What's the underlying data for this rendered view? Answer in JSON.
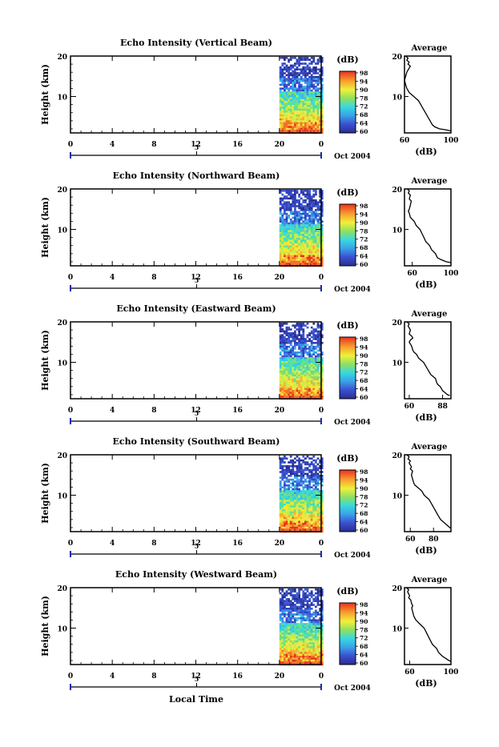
{
  "chart_data": [
    {
      "type": "heatmap",
      "title": "Echo Intensity (Vertical Beam)",
      "ylabel": "Height (km)",
      "yticks": [
        "20",
        "10"
      ],
      "ylim": [
        1,
        20
      ],
      "xticks": [
        "0",
        "4",
        "8",
        "12",
        "16",
        "20",
        "0"
      ],
      "xlim": [
        0,
        24
      ],
      "date_tick": "5",
      "date_label": "Oct 2004",
      "data_start_hour": 20.0,
      "colorbar": {
        "label": "(dB)",
        "ticks": [
          "98",
          "94",
          "90",
          "78",
          "72",
          "68",
          "64",
          "60"
        ]
      },
      "profile": {
        "title": "Average",
        "xlabel": "(dB)",
        "xticks": [
          "60",
          "100"
        ],
        "xlim": [
          60,
          100
        ],
        "yticks": [
          "20",
          "10"
        ],
        "x": [
          61,
          63,
          62,
          64,
          63,
          65,
          64,
          62,
          61,
          60,
          61,
          62,
          63,
          64,
          66,
          68,
          70,
          72,
          74,
          76,
          78,
          80,
          81,
          82,
          84,
          86,
          90,
          95,
          100
        ],
        "y": [
          20,
          19.5,
          19,
          18.5,
          18,
          17.5,
          17,
          16,
          15,
          14,
          13,
          12,
          11.5,
          11,
          10.5,
          10,
          9.5,
          9,
          8,
          7,
          6,
          5,
          4.5,
          4,
          3,
          2.5,
          2,
          1.8,
          1.5
        ]
      }
    },
    {
      "type": "heatmap",
      "title": "Echo Intensity (Northward Beam)",
      "ylabel": "Height (km)",
      "yticks": [
        "20",
        "10"
      ],
      "ylim": [
        1,
        20
      ],
      "xticks": [
        "0",
        "4",
        "8",
        "12",
        "16",
        "20",
        "0"
      ],
      "xlim": [
        0,
        24
      ],
      "date_tick": "5",
      "date_label": "Oct 2004",
      "data_start_hour": 20.0,
      "colorbar": {
        "label": "(dB)",
        "ticks": [
          "98",
          "94",
          "90",
          "78",
          "72",
          "68",
          "64",
          "60"
        ]
      },
      "profile": {
        "title": "Average",
        "xlabel": "(dB)",
        "xticks": [
          "60",
          "100"
        ],
        "xlim": [
          52,
          100
        ],
        "yticks": [
          "20",
          "10"
        ],
        "x": [
          55,
          57,
          56,
          58,
          57,
          59,
          58,
          57,
          56,
          57,
          58,
          60,
          62,
          63,
          64,
          66,
          68,
          70,
          72,
          74,
          76,
          78,
          80,
          82,
          84,
          86,
          90,
          95,
          100
        ],
        "y": [
          20,
          19.5,
          19,
          18.5,
          17.5,
          17,
          16,
          15,
          14.5,
          14,
          13,
          12.5,
          12,
          11.5,
          11,
          10.5,
          10,
          9,
          8,
          7,
          6.5,
          6,
          5,
          4.5,
          4,
          3,
          2.5,
          2,
          1.8
        ]
      }
    },
    {
      "type": "heatmap",
      "title": "Echo Intensity (Eastward Beam)",
      "ylabel": "Height (km)",
      "yticks": [
        "20",
        "10"
      ],
      "ylim": [
        1,
        20
      ],
      "xticks": [
        "0",
        "4",
        "8",
        "12",
        "16",
        "20",
        "0"
      ],
      "xlim": [
        0,
        24
      ],
      "date_tick": "5",
      "date_label": "Oct 2004",
      "data_start_hour": 20.0,
      "colorbar": {
        "label": "(dB)",
        "ticks": [
          "98",
          "94",
          "90",
          "78",
          "72",
          "68",
          "64",
          "60"
        ]
      },
      "profile": {
        "title": "Average",
        "xlabel": "(dB)",
        "xticks": [
          "60",
          "88"
        ],
        "xlim": [
          56,
          95
        ],
        "yticks": [
          "20",
          "10"
        ],
        "x": [
          58,
          60,
          59,
          61,
          60,
          62,
          63,
          61,
          60,
          61,
          62,
          63,
          64,
          66,
          68,
          70,
          72,
          74,
          76,
          78,
          80,
          82,
          83,
          84,
          86,
          88,
          90,
          92,
          94
        ],
        "y": [
          20,
          19.5,
          19,
          18,
          17,
          16.5,
          16,
          15.5,
          15,
          14.5,
          14,
          13,
          12.5,
          12,
          11,
          10.5,
          10,
          9,
          8,
          7,
          6.5,
          6,
          5,
          4.5,
          4,
          3,
          2.5,
          2,
          1.8
        ]
      }
    },
    {
      "type": "heatmap",
      "title": "Echo Intensity (Southward Beam)",
      "ylabel": "Height (km)",
      "yticks": [
        "20",
        "10"
      ],
      "ylim": [
        1,
        20
      ],
      "xticks": [
        "0",
        "4",
        "8",
        "12",
        "16",
        "20",
        "0"
      ],
      "xlim": [
        0,
        24
      ],
      "date_tick": "5",
      "date_label": "Oct 2004",
      "data_start_hour": 20.0,
      "colorbar": {
        "label": "(dB)",
        "ticks": [
          "98",
          "94",
          "90",
          "78",
          "72",
          "68",
          "64",
          "60"
        ]
      },
      "profile": {
        "title": "Average",
        "xlabel": "(dB)",
        "xticks": [
          "60",
          "80"
        ],
        "xlim": [
          55,
          95
        ],
        "yticks": [
          "20",
          "10"
        ],
        "x": [
          57,
          59,
          58,
          60,
          59,
          61,
          60,
          62,
          61,
          62,
          63,
          64,
          66,
          68,
          70,
          72,
          74,
          76,
          78,
          80,
          82,
          84,
          85,
          86,
          88,
          90,
          92,
          94,
          95
        ],
        "y": [
          20,
          19.5,
          19,
          18.5,
          18,
          17,
          16.5,
          16,
          15,
          14,
          13,
          12.5,
          12,
          11.5,
          11,
          10,
          9.5,
          9,
          8,
          7,
          6,
          5,
          4.5,
          4,
          3.5,
          3,
          2.5,
          2,
          1.8
        ]
      }
    },
    {
      "type": "heatmap",
      "title": "Echo Intensity (Westward Beam)",
      "ylabel": "Height (km)",
      "yticks": [
        "20",
        "10"
      ],
      "ylim": [
        1,
        20
      ],
      "xticks": [
        "0",
        "4",
        "8",
        "12",
        "16",
        "20",
        "0"
      ],
      "xlim": [
        0,
        24
      ],
      "date_tick": "5",
      "date_label": "Oct 2004",
      "xlabel": "Local Time",
      "data_start_hour": 20.0,
      "colorbar": {
        "label": "(dB)",
        "ticks": [
          "98",
          "94",
          "90",
          "78",
          "72",
          "68",
          "64",
          "60"
        ]
      },
      "profile": {
        "title": "Average",
        "xlabel": "(dB)",
        "xticks": [
          "60",
          "100"
        ],
        "xlim": [
          55,
          100
        ],
        "yticks": [
          "20",
          "10"
        ],
        "x": [
          57,
          59,
          58,
          60,
          59,
          61,
          62,
          63,
          62,
          63,
          64,
          65,
          66,
          68,
          70,
          72,
          74,
          76,
          78,
          80,
          82,
          84,
          86,
          88,
          90,
          92,
          95,
          98,
          100
        ],
        "y": [
          20,
          19.5,
          19,
          18,
          17.5,
          17,
          16,
          15.5,
          15,
          14,
          13,
          12.5,
          12,
          11.5,
          11,
          10.5,
          10,
          9,
          8,
          7,
          6,
          5.5,
          5,
          4,
          3.5,
          3,
          2.5,
          2,
          1.8
        ]
      }
    }
  ]
}
